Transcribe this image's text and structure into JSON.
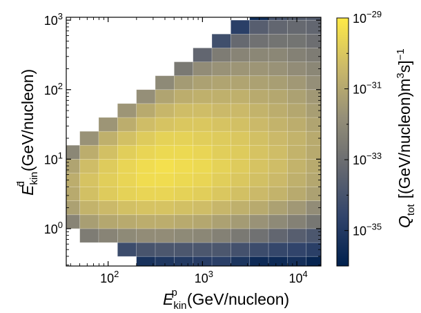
{
  "chart_data": {
    "type": "heatmap",
    "x_axis": {
      "label_symbol": "E",
      "label_sup": "p",
      "label_sub": "kin",
      "label_unit": "(GeV/nucleon)",
      "scale": "log",
      "range": [
        36,
        18000
      ],
      "ticks": [
        {
          "value": 100,
          "label": "10",
          "exp": "2"
        },
        {
          "value": 1000,
          "label": "10",
          "exp": "3"
        },
        {
          "value": 10000,
          "label": "10",
          "exp": "4"
        }
      ]
    },
    "y_axis": {
      "label_symbol": "E",
      "label_sup": "d̄",
      "label_sub": "kin",
      "label_unit": "(GeV/nucleon)",
      "scale": "log",
      "range": [
        0.29,
        1100
      ],
      "ticks": [
        {
          "value": 1,
          "label": "10",
          "exp": "0"
        },
        {
          "value": 10,
          "label": "10",
          "exp": "1"
        },
        {
          "value": 100,
          "label": "10",
          "exp": "2"
        },
        {
          "value": 1000,
          "label": "10",
          "exp": "3"
        }
      ]
    },
    "colorbar": {
      "label_symbol": "Q",
      "label_sub": "tot",
      "label_unit_open": "[(GeV/nucleon)m",
      "label_unit_sup1": "3",
      "label_unit_mid": "s]",
      "label_unit_sup2": "−1",
      "scale": "log",
      "range_log10": [
        -36.0,
        -29.0
      ],
      "ticks": [
        {
          "log10": -29,
          "label": "10",
          "exp": "−29"
        },
        {
          "log10": -31,
          "label": "10",
          "exp": "−31"
        },
        {
          "log10": -33,
          "label": "10",
          "exp": "−33"
        },
        {
          "log10": -35,
          "label": "10",
          "exp": "−35"
        }
      ],
      "colormap": [
        "#00204d",
        "#31446b",
        "#666970",
        "#958f78",
        "#cbb969",
        "#ffea46"
      ]
    },
    "x_bins_log10": [
      1.5,
      1.7,
      1.9,
      2.1,
      2.3,
      2.5,
      2.7,
      2.9,
      3.1,
      3.3,
      3.5,
      3.7,
      3.9,
      4.1,
      4.3
    ],
    "y_bins_log10": [
      -0.6,
      -0.4,
      -0.2,
      0.0,
      0.2,
      0.4,
      0.6,
      0.8,
      1.0,
      1.2,
      1.4,
      1.6,
      1.8,
      2.0,
      2.2,
      2.4,
      2.6,
      2.8,
      3.0,
      3.2
    ],
    "row_start_bin": [
      4,
      3,
      1,
      0,
      0,
      0,
      0,
      0,
      0,
      1,
      2,
      3,
      4,
      5,
      6,
      7,
      8,
      9,
      10
    ],
    "cells_log10": [
      [
        null,
        null,
        null,
        null,
        -35.3,
        -35.1,
        -35.0,
        -34.9,
        -34.8,
        -35.2,
        -35.6,
        -35.6,
        -35.4,
        -35.8
      ],
      [
        null,
        null,
        null,
        -34.3,
        -34.0,
        -33.9,
        -33.9,
        -33.9,
        -33.9,
        -34.1,
        -34.3,
        -34.5,
        -34.6,
        -34.8
      ],
      [
        null,
        -32.5,
        -32.2,
        -32.0,
        -31.9,
        -31.9,
        -32.0,
        -32.1,
        -32.3,
        -32.6,
        -32.9,
        -33.3,
        -33.6,
        -33.9
      ],
      [
        -32.2,
        -31.3,
        -31.0,
        -30.9,
        -30.8,
        -30.8,
        -30.9,
        -31.0,
        -31.2,
        -31.4,
        -31.7,
        -32.0,
        -32.3,
        -32.7
      ],
      [
        -31.2,
        -30.6,
        -30.4,
        -30.2,
        -30.1,
        -30.1,
        -30.2,
        -30.3,
        -30.5,
        -30.7,
        -30.9,
        -31.2,
        -31.5,
        -31.9
      ],
      [
        -30.9,
        -30.2,
        -29.9,
        -29.7,
        -29.6,
        -29.6,
        -29.7,
        -29.8,
        -30.0,
        -30.2,
        -30.4,
        -30.6,
        -30.9,
        -31.2
      ],
      [
        -30.8,
        -30.1,
        -29.8,
        -29.6,
        -29.4,
        -29.4,
        -29.5,
        -29.6,
        -29.8,
        -30.0,
        -30.2,
        -30.4,
        -30.7,
        -31.0
      ],
      [
        -31.1,
        -30.3,
        -29.9,
        -29.6,
        -29.4,
        -29.3,
        -29.4,
        -29.5,
        -29.7,
        -29.9,
        -30.1,
        -30.3,
        -30.6,
        -30.9
      ],
      [
        -32.1,
        -30.8,
        -30.2,
        -29.8,
        -29.6,
        -29.5,
        -29.5,
        -29.6,
        -29.8,
        -29.9,
        -30.1,
        -30.3,
        -30.6,
        -30.9
      ],
      [
        null,
        -31.7,
        -30.7,
        -30.2,
        -29.9,
        -29.7,
        -29.7,
        -29.8,
        -29.9,
        -30.0,
        -30.2,
        -30.4,
        -30.6,
        -30.9
      ],
      [
        null,
        null,
        -31.6,
        -30.8,
        -30.3,
        -30.1,
        -30.0,
        -30.0,
        -30.1,
        -30.2,
        -30.4,
        -30.6,
        -30.8,
        -31.1
      ],
      [
        null,
        null,
        null,
        -31.6,
        -30.9,
        -30.5,
        -30.3,
        -30.3,
        -30.4,
        -30.4,
        -30.6,
        -30.8,
        -31.0,
        -31.3
      ],
      [
        null,
        null,
        null,
        null,
        -31.8,
        -31.1,
        -30.8,
        -30.7,
        -30.7,
        -30.7,
        -30.9,
        -31.0,
        -31.2,
        -31.5
      ],
      [
        null,
        null,
        null,
        null,
        null,
        -32.0,
        -31.4,
        -31.2,
        -31.1,
        -31.1,
        -31.2,
        -31.3,
        -31.5,
        -31.8
      ],
      [
        null,
        null,
        null,
        null,
        null,
        null,
        -32.6,
        -31.9,
        -31.7,
        -31.6,
        -31.6,
        -31.7,
        -31.9,
        -32.1
      ],
      [
        null,
        null,
        null,
        null,
        null,
        null,
        null,
        -33.3,
        -32.5,
        -32.2,
        -32.1,
        -32.1,
        -32.3,
        -32.5
      ],
      [
        null,
        null,
        null,
        null,
        null,
        null,
        null,
        null,
        -34.2,
        -33.2,
        -32.9,
        -32.8,
        -32.8,
        -33.0
      ],
      [
        null,
        null,
        null,
        null,
        null,
        null,
        null,
        null,
        null,
        -34.8,
        -33.6,
        -33.3,
        -33.2,
        -33.3
      ],
      [
        null,
        null,
        null,
        null,
        null,
        null,
        null,
        null,
        null,
        null,
        -35.5,
        -34.0,
        -33.7,
        -33.7
      ]
    ]
  }
}
